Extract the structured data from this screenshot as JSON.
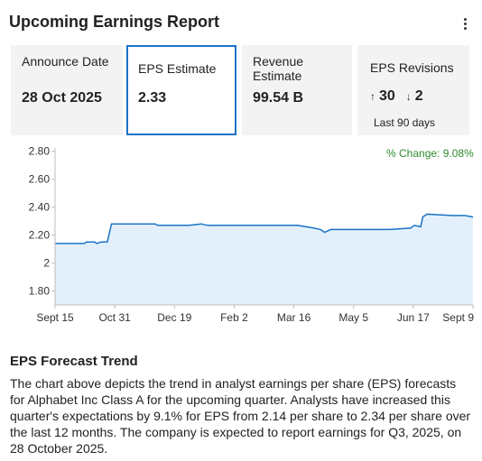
{
  "header": {
    "title": "Upcoming Earnings Report",
    "menu_icon": "kebab-menu-icon"
  },
  "cards": [
    {
      "label": "Announce Date",
      "value": "28 Oct 2025"
    },
    {
      "label": "EPS Estimate",
      "value": "2.33"
    },
    {
      "label": "Revenue Estimate",
      "value": "99.54 B"
    },
    {
      "label": "EPS Revisions",
      "up": "30",
      "down": "2",
      "sub": "Last 90 days"
    }
  ],
  "pct_change": "% Change: 9.08%",
  "colors": {
    "line": "#1a73c8",
    "fill": "#e3f0fb",
    "pct": "#2e8b2e",
    "selected_border": "#1a73c8"
  },
  "chart_data": {
    "type": "area",
    "yticks": [
      "1.80",
      "2",
      "2.20",
      "2.40",
      "2.60",
      "2.80"
    ],
    "ylim": [
      1.7,
      2.85
    ],
    "xticks": [
      "Sept 15",
      "Oct 31",
      "Dec 19",
      "Feb 2",
      "Mar 16",
      "May 5",
      "Jun 17",
      "Sept 9"
    ],
    "series": [
      {
        "values": [
          [
            0,
            2.14
          ],
          [
            0.07,
            2.14
          ],
          [
            0.075,
            2.15
          ],
          [
            0.095,
            2.15
          ],
          [
            0.1,
            2.14
          ],
          [
            0.11,
            2.15
          ],
          [
            0.125,
            2.15
          ],
          [
            0.135,
            2.28
          ],
          [
            0.24,
            2.28
          ],
          [
            0.245,
            2.27
          ],
          [
            0.32,
            2.27
          ],
          [
            0.35,
            2.28
          ],
          [
            0.365,
            2.27
          ],
          [
            0.5,
            2.27
          ],
          [
            0.58,
            2.27
          ],
          [
            0.6,
            2.26
          ],
          [
            0.62,
            2.25
          ],
          [
            0.635,
            2.24
          ],
          [
            0.645,
            2.22
          ],
          [
            0.66,
            2.24
          ],
          [
            0.8,
            2.24
          ],
          [
            0.85,
            2.25
          ],
          [
            0.86,
            2.27
          ],
          [
            0.875,
            2.26
          ],
          [
            0.88,
            2.33
          ],
          [
            0.89,
            2.35
          ],
          [
            0.95,
            2.34
          ],
          [
            0.98,
            2.34
          ],
          [
            1.0,
            2.33
          ]
        ]
      }
    ]
  },
  "forecast": {
    "title": "EPS Forecast Trend",
    "body": "The chart above depicts the trend in analyst earnings per share (EPS) forecasts for Alphabet Inc Class A for the upcoming quarter. Analysts have increased this quarter's expectations by 9.1% for EPS from 2.14 per share to 2.34 per share over the last 12 months. The company is expected to report earnings for Q3, 2025, on 28 October 2025."
  }
}
